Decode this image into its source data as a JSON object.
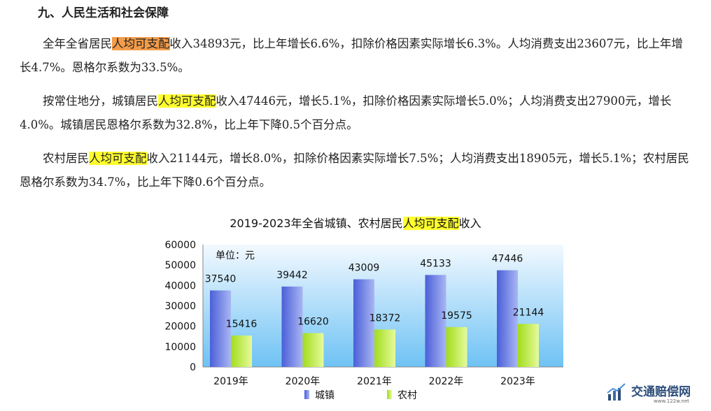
{
  "section_heading": "九、人民生活和社会保障",
  "paragraphs": {
    "p1": {
      "before": "全年全省居民",
      "highlight": "人均可支配",
      "after": "收入34893元，比上年增长6.6%，扣除价格因素实际增长6.3%。人均消费支出23607元，比上年增长4.7%。恩格尔系数为33.5%。"
    },
    "p2": {
      "before": "按常住地分，城镇居民",
      "highlight": "人均可支配",
      "after": "收入47446元，增长5.1%，扣除价格因素实际增长5.0%；人均消费支出27900元，增长4.0%。城镇居民恩格尔系数为32.8%，比上年下降0.5个百分点。"
    },
    "p3": {
      "before": "农村居民",
      "highlight": "人均可支配",
      "after": "收入21144元，增长8.0%，扣除价格因素实际增长7.5%；人均消费支出18905元，增长5.1%；农村居民恩格尔系数为34.7%，比上年下降0.6个百分点。"
    }
  },
  "colors": {
    "highlight_orange": "#f39c4a",
    "highlight_yellow": "#ffff2e",
    "urban_bar": "#5f72e0",
    "rural_bar": "#b8ea3c"
  },
  "chart_data": {
    "type": "bar",
    "title_before": "2019-2023年全省城镇、农村居民",
    "title_highlight": "人均可支配",
    "title_after": "收入",
    "unit_label": "单位：元",
    "categories": [
      "2019年",
      "2020年",
      "2021年",
      "2022年",
      "2023年"
    ],
    "series": [
      {
        "name": "城镇",
        "values": [
          37540,
          39442,
          43009,
          45133,
          47446
        ]
      },
      {
        "name": "农村",
        "values": [
          15416,
          16620,
          18372,
          19575,
          21144
        ]
      }
    ],
    "yticks": [
      0,
      10000,
      20000,
      30000,
      40000,
      50000,
      60000
    ],
    "ylim": [
      0,
      60000
    ],
    "grid": false,
    "legend": "bottom"
  },
  "watermark": {
    "name": "交通赔偿网",
    "url": "www.122w.net"
  }
}
